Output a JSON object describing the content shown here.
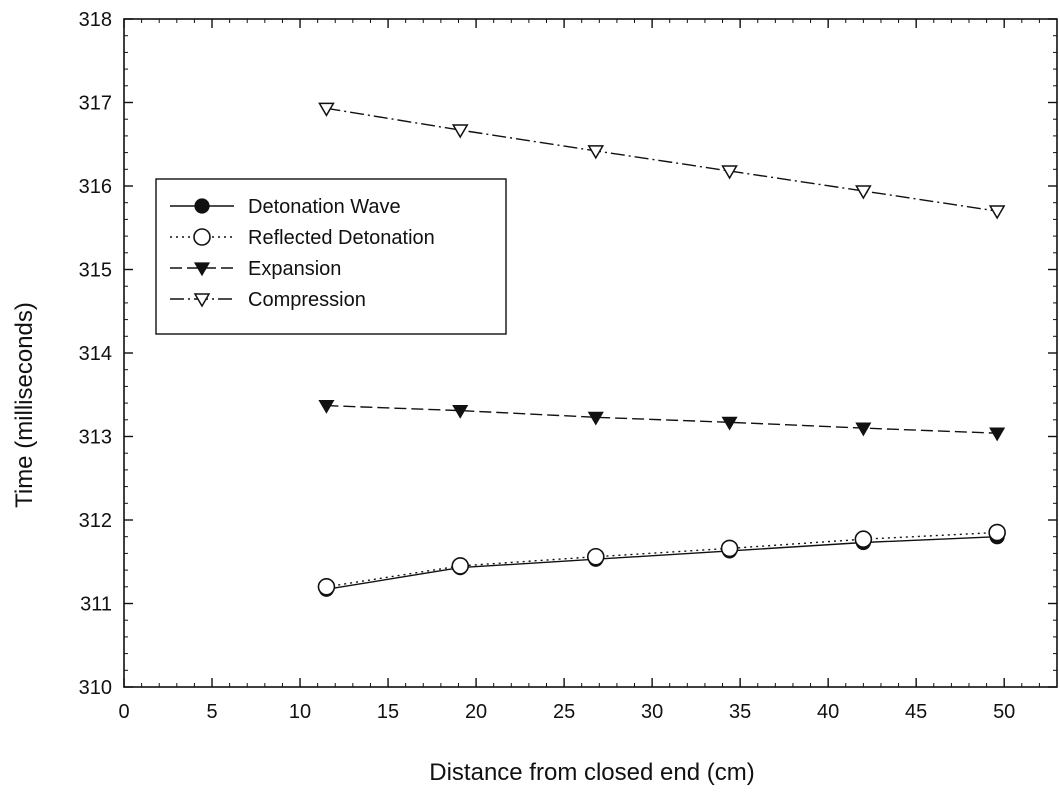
{
  "chart_data": {
    "type": "line",
    "xlabel": "Distance from closed end (cm)",
    "ylabel": "Time (milliseconds)",
    "xlim": [
      0,
      53
    ],
    "ylim": [
      310,
      318
    ],
    "x_ticks": [
      0,
      5,
      10,
      15,
      20,
      25,
      30,
      35,
      40,
      45,
      50
    ],
    "y_ticks": [
      310,
      311,
      312,
      313,
      314,
      315,
      316,
      317,
      318
    ],
    "grid": false,
    "legend_position": "upper-left",
    "x": [
      11.5,
      19.1,
      26.8,
      34.4,
      42.0,
      49.6
    ],
    "series": [
      {
        "name": "Detonation Wave",
        "values": [
          311.17,
          311.43,
          311.53,
          311.63,
          311.73,
          311.8
        ],
        "marker": "filled-circle",
        "line_style": "solid"
      },
      {
        "name": "Reflected Detonation",
        "values": [
          311.2,
          311.45,
          311.56,
          311.66,
          311.77,
          311.85
        ],
        "marker": "open-circle",
        "line_style": "dotted"
      },
      {
        "name": "Expansion",
        "values": [
          313.37,
          313.31,
          313.23,
          313.17,
          313.1,
          313.04
        ],
        "marker": "filled-triangle-down",
        "line_style": "dashed"
      },
      {
        "name": "Compression",
        "values": [
          316.93,
          316.67,
          316.42,
          316.18,
          315.94,
          315.7
        ],
        "marker": "open-triangle-down",
        "line_style": "dash-dot"
      }
    ]
  }
}
